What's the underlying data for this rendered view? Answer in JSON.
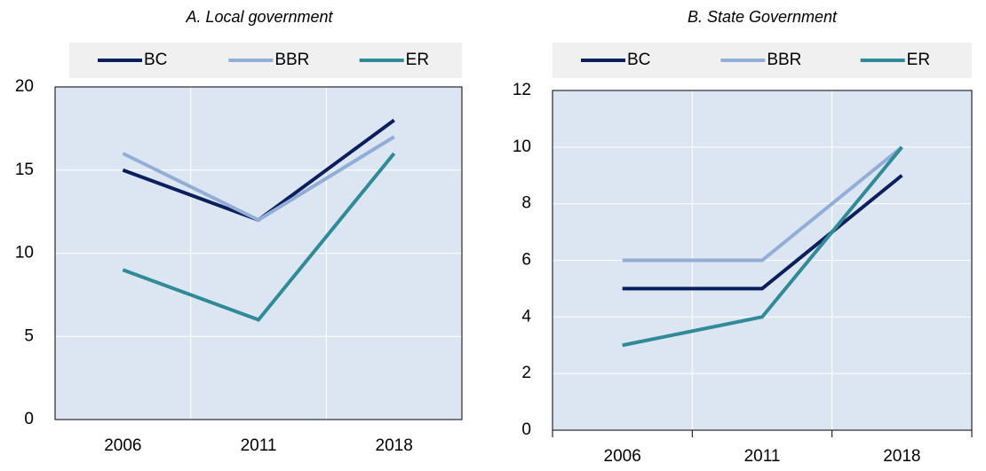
{
  "chart_data": [
    {
      "type": "line",
      "title": "A. Local government",
      "categories": [
        "2006",
        "2011",
        "2018"
      ],
      "series": [
        {
          "name": "BC",
          "color": "#0a1f5c",
          "values": [
            15,
            12,
            18
          ]
        },
        {
          "name": "BBR",
          "color": "#93aed6",
          "values": [
            16,
            12,
            17
          ]
        },
        {
          "name": "ER",
          "color": "#318a97",
          "values": [
            9,
            6,
            16
          ]
        }
      ],
      "ylim": [
        0,
        20
      ],
      "yticks": [
        0,
        5,
        10,
        15,
        20
      ],
      "grid": true
    },
    {
      "type": "line",
      "title": "B. State Government",
      "categories": [
        "2006",
        "2011",
        "2018"
      ],
      "series": [
        {
          "name": "BC",
          "color": "#0a1f5c",
          "values": [
            5,
            5,
            9
          ]
        },
        {
          "name": "BBR",
          "color": "#93aed6",
          "values": [
            6,
            6,
            10
          ]
        },
        {
          "name": "ER",
          "color": "#318a97",
          "values": [
            3,
            4,
            10
          ]
        }
      ],
      "ylim": [
        0,
        12
      ],
      "yticks": [
        0,
        2,
        4,
        6,
        8,
        10,
        12
      ],
      "grid": true
    }
  ]
}
